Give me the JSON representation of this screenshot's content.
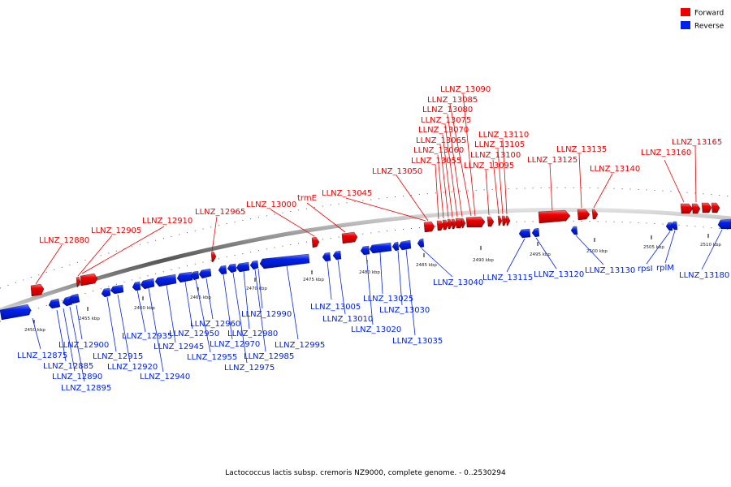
{
  "legend": {
    "forward_label": "Forward",
    "reverse_label": "Reverse",
    "forward_color": "#ee0000",
    "reverse_color": "#0022ee"
  },
  "caption": "Lactococcus lactis subsp. cremoris NZ9000, complete genome. - 0..2530294",
  "ticks": [
    "2450 kbp",
    "2455 kbp",
    "2460 kbp",
    "2465 kbp",
    "2470 kbp",
    "2475 kbp",
    "2480 kbp",
    "2485 kbp",
    "2490 kbp",
    "2495 kbp",
    "2500 kbp",
    "2505 kbp",
    "2510 kbp"
  ],
  "forward_genes": [
    "LLNZ_12880",
    "LLNZ_12905",
    "LLNZ_12910",
    "LLNZ_12965",
    "LLNZ_13000",
    "trmE",
    "LLNZ_13045",
    "LLNZ_13050",
    "LLNZ_13055",
    "LLNZ_13060",
    "LLNZ_13065",
    "LLNZ_13070",
    "LLNZ_13075",
    "LLNZ_13080",
    "LLNZ_13085",
    "LLNZ_13090",
    "LLNZ_13095",
    "LLNZ_13100",
    "LLNZ_13105",
    "LLNZ_13110",
    "LLNZ_13125",
    "LLNZ_13135",
    "LLNZ_13140",
    "LLNZ_13160",
    "LLNZ_13165"
  ],
  "reverse_genes": [
    "LLNZ_12875",
    "LLNZ_12885",
    "LLNZ_12890",
    "LLNZ_12895",
    "LLNZ_12900",
    "LLNZ_12915",
    "LLNZ_12920",
    "LLNZ_12935",
    "LLNZ_12940",
    "LLNZ_12945",
    "LLNZ_12950",
    "LLNZ_12955",
    "LLNZ_12960",
    "LLNZ_12970",
    "LLNZ_12975",
    "LLNZ_12980",
    "LLNZ_12985",
    "LLNZ_12990",
    "LLNZ_12995",
    "LLNZ_13005",
    "LLNZ_13010",
    "LLNZ_13020",
    "LLNZ_13025",
    "LLNZ_13030",
    "LLNZ_13035",
    "LLNZ_13040",
    "LLNZ_13115",
    "LLNZ_13120",
    "LLNZ_13130",
    "rpsI",
    "rplM",
    "LLNZ_13180"
  ]
}
